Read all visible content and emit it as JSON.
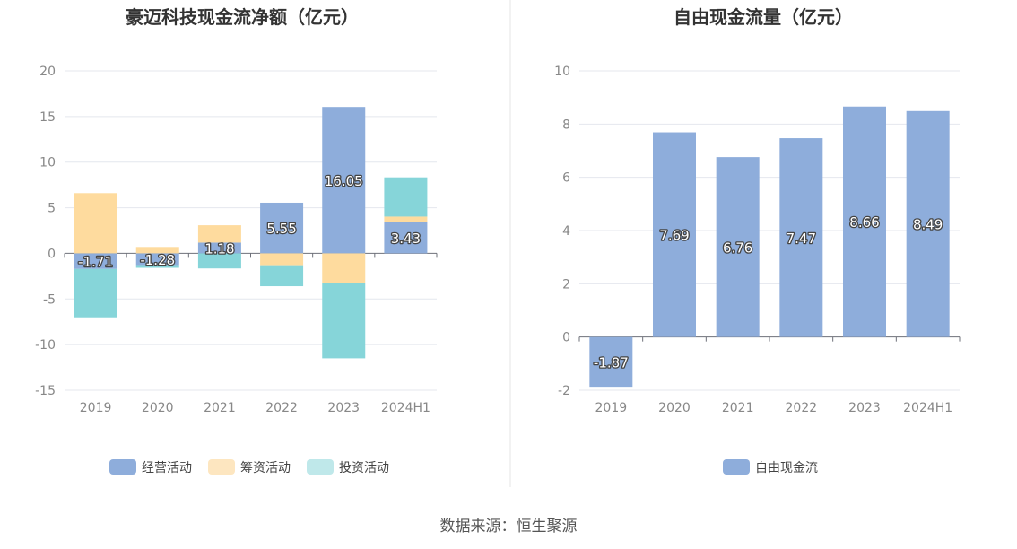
{
  "source_text": "数据来源：恒生聚源",
  "chart_data": [
    {
      "type": "bar",
      "stacked": true,
      "title": "豪迈科技现金流净额（亿元）",
      "categories": [
        "2019",
        "2020",
        "2021",
        "2022",
        "2023",
        "2024H1"
      ],
      "ylim": [
        -15,
        20
      ],
      "yticks": [
        -15,
        -10,
        -5,
        0,
        5,
        10,
        15,
        20
      ],
      "grid": true,
      "legend_position": "bottom",
      "series": [
        {
          "name": "经营活动",
          "color": "#8eaddb",
          "values": [
            -1.71,
            -1.28,
            1.18,
            5.55,
            16.05,
            3.43
          ]
        },
        {
          "name": "筹资活动",
          "color": "#fedb9e",
          "values": [
            6.6,
            0.7,
            1.9,
            -1.3,
            -3.3,
            0.6
          ]
        },
        {
          "name": "投资活动",
          "color": "#86d5d9",
          "values": [
            -5.3,
            -0.3,
            -1.65,
            -2.3,
            -8.2,
            4.3
          ]
        }
      ],
      "data_labels": [
        "-1.71",
        "-1.28",
        "1.18",
        "5.55",
        "16.05",
        "3.43"
      ]
    },
    {
      "type": "bar",
      "title": "自由现金流量（亿元）",
      "categories": [
        "2019",
        "2020",
        "2021",
        "2022",
        "2023",
        "2024H1"
      ],
      "ylim": [
        -2,
        10
      ],
      "yticks": [
        -2,
        0,
        2,
        4,
        6,
        8,
        10
      ],
      "grid": true,
      "legend_position": "bottom",
      "series": [
        {
          "name": "自由现金流",
          "color": "#8eaddb",
          "values": [
            -1.87,
            7.69,
            6.76,
            7.47,
            8.66,
            8.49
          ]
        }
      ],
      "data_labels": [
        "-1.87",
        "7.69",
        "6.76",
        "7.47",
        "8.66",
        "8.49"
      ]
    }
  ]
}
